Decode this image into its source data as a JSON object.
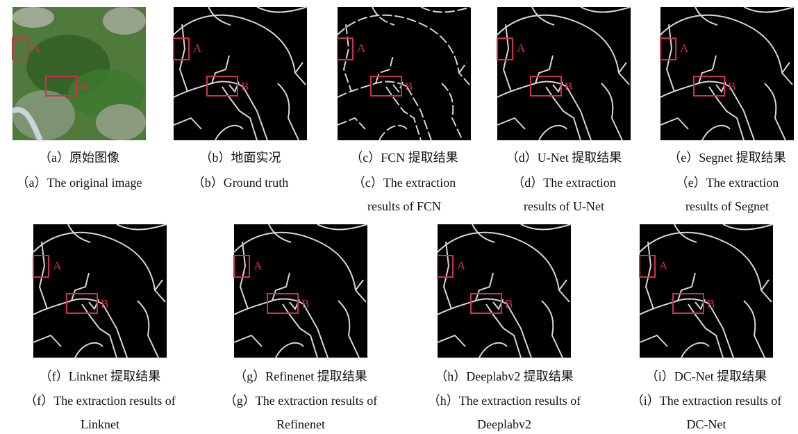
{
  "panels": [
    {
      "caption_cn": "（a）原始图像",
      "caption_en": [
        "（a）The original image"
      ],
      "markers": [
        "A",
        "B"
      ]
    },
    {
      "caption_cn": "（b）地面实况",
      "caption_en": [
        "（b）Ground truth"
      ],
      "markers": [
        "A",
        "B"
      ]
    },
    {
      "caption_cn": "（c）FCN 提取结果",
      "caption_en": [
        "（c）The extraction",
        "results of FCN"
      ],
      "markers": [
        "A",
        "B"
      ]
    },
    {
      "caption_cn": "（d）U-Net 提取结果",
      "caption_en": [
        "（d）The extraction",
        "results of U-Net"
      ],
      "markers": [
        "A",
        "B"
      ]
    },
    {
      "caption_cn": "（e）Segnet 提取结果",
      "caption_en": [
        "（e）The extraction",
        "results of Segnet"
      ],
      "markers": [
        "A",
        "B"
      ]
    },
    {
      "caption_cn": "（f）Linknet 提取结果",
      "caption_en": [
        "（f）The extraction results of",
        "Linknet"
      ],
      "markers": [
        "A",
        "B"
      ]
    },
    {
      "caption_cn": "（g）Refinenet 提取结果",
      "caption_en": [
        "（g）The extraction results of",
        "Refinenet"
      ],
      "markers": [
        "A",
        "B"
      ]
    },
    {
      "caption_cn": "（h）Deeplabv2 提取结果",
      "caption_en": [
        "（h）The extraction results of",
        "Deeplabv2"
      ],
      "markers": [
        "A",
        "B"
      ]
    },
    {
      "caption_cn": "（i）DC-Net 提取结果",
      "caption_en": [
        "（i）The extraction results of",
        "DC-Net"
      ],
      "markers": [
        "A",
        "B"
      ]
    }
  ]
}
